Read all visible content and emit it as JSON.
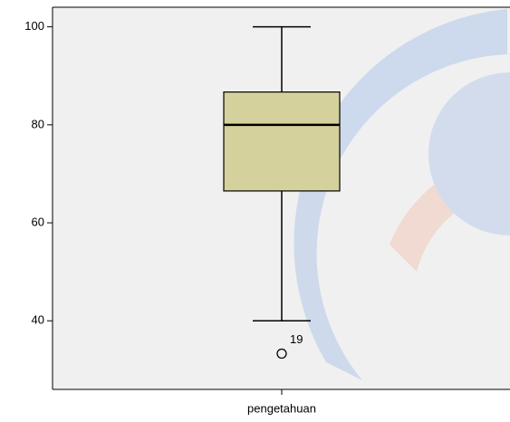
{
  "chart_data": {
    "type": "box",
    "categories": [
      "pengetahuan"
    ],
    "boxes": [
      {
        "whisker_low": 40,
        "q1": 66.5,
        "median": 80,
        "q3": 86.7,
        "whisker_high": 100,
        "outliers": [
          {
            "value": 33.3,
            "label": "19"
          }
        ]
      }
    ],
    "color": "#d4d19c",
    "ylim": [
      26,
      104
    ],
    "yticks": [
      40,
      60,
      80,
      100
    ]
  }
}
